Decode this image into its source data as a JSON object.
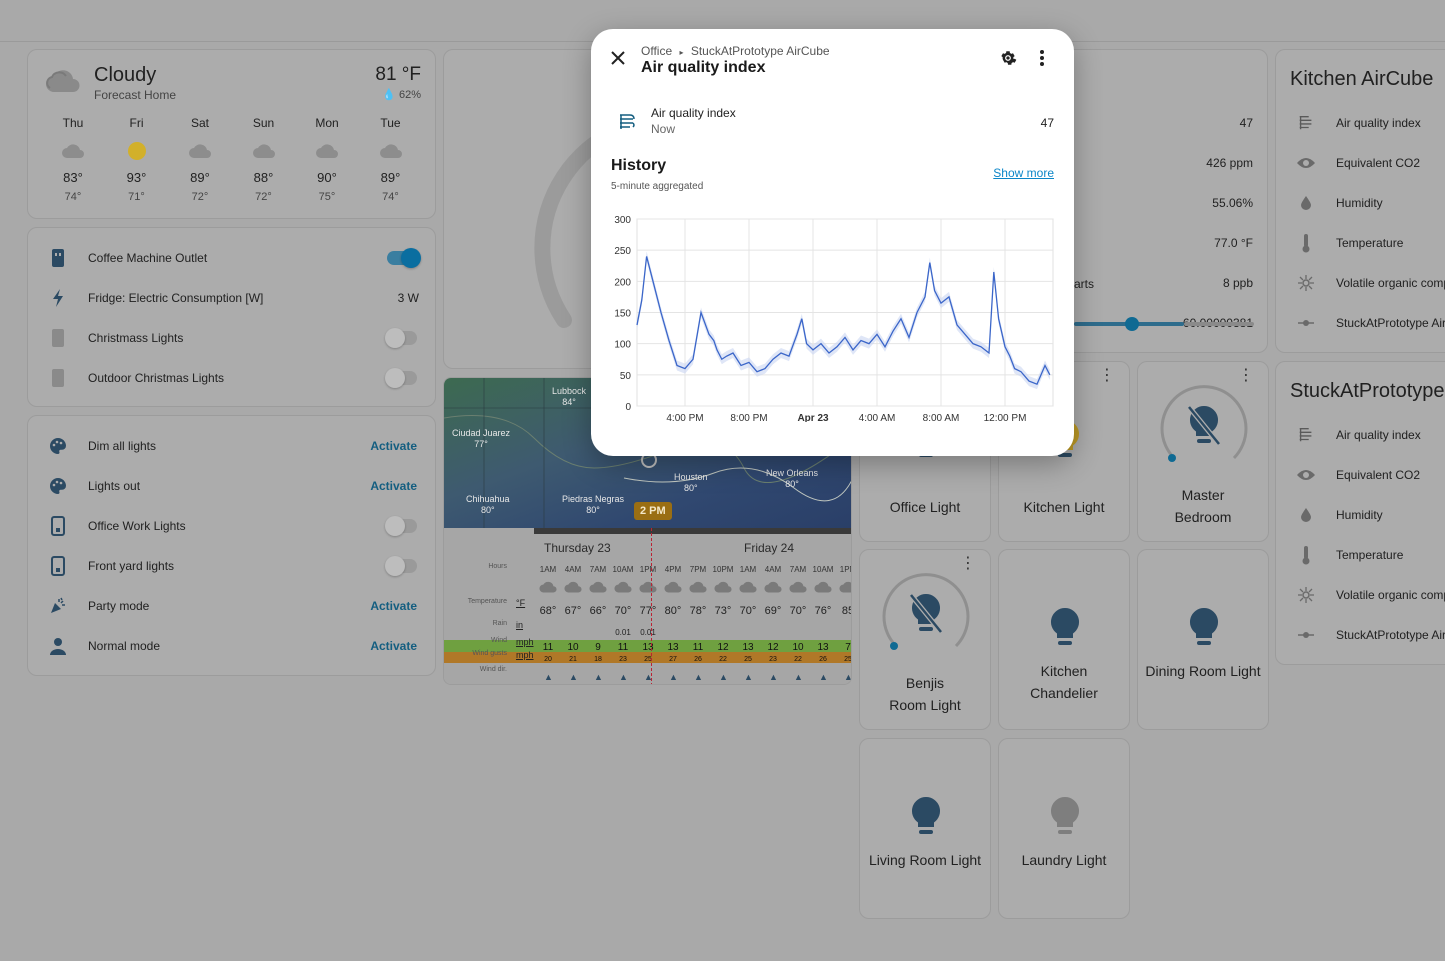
{
  "weather": {
    "condition": "Cloudy",
    "source": "Forecast Home",
    "temperature": "81 °F",
    "humidity": "62%",
    "forecast": [
      {
        "day": "Thu",
        "icon": "cloudy-icon",
        "hi": "83°",
        "lo": "74°"
      },
      {
        "day": "Fri",
        "icon": "sunny-icon",
        "hi": "93°",
        "lo": "71°"
      },
      {
        "day": "Sat",
        "icon": "cloudy-icon",
        "hi": "89°",
        "lo": "72°"
      },
      {
        "day": "Sun",
        "icon": "cloudy-icon",
        "hi": "88°",
        "lo": "72°"
      },
      {
        "day": "Mon",
        "icon": "cloudy-icon",
        "hi": "90°",
        "lo": "75°"
      },
      {
        "day": "Tue",
        "icon": "cloudy-icon",
        "hi": "89°",
        "lo": "74°"
      }
    ]
  },
  "switches": [
    {
      "icon": "outlet-icon",
      "label": "Coffee Machine Outlet",
      "state": "on"
    },
    {
      "icon": "flash-icon",
      "label": "Fridge: Electric Consumption [W]",
      "value": "3 W"
    },
    {
      "icon": "outlet-icon",
      "label": "Christmass Lights",
      "state": "off"
    },
    {
      "icon": "outlet-icon",
      "label": "Outdoor Christmas Lights",
      "state": "off"
    }
  ],
  "scenes": [
    {
      "icon": "palette-icon",
      "label": "Dim all lights",
      "action": "Activate"
    },
    {
      "icon": "palette-icon",
      "label": "Lights out",
      "action": "Activate"
    },
    {
      "icon": "switch-icon",
      "label": "Office Work Lights",
      "state": "off"
    },
    {
      "icon": "switch-icon",
      "label": "Front yard lights",
      "state": "off"
    },
    {
      "icon": "party-icon",
      "label": "Party mode",
      "action": "Activate"
    },
    {
      "icon": "person-icon",
      "label": "Normal mode",
      "action": "Activate"
    }
  ],
  "middle_sensors": {
    "values": [
      "47",
      "426 ppm",
      "55.06%",
      "77.0 °F",
      "8 ppb",
      "60.00000381"
    ],
    "partial_label": "arts"
  },
  "windy": {
    "cities": [
      {
        "name": "Lubbock",
        "temp": "84°"
      },
      {
        "name": "Ciudad Juarez",
        "temp": "77°"
      },
      {
        "name": "Chihuahua",
        "temp": "80°"
      },
      {
        "name": "Piedras Negras",
        "temp": "80°"
      },
      {
        "name": "Houston",
        "temp": "80°"
      },
      {
        "name": "New Orleans",
        "temp": "80°"
      }
    ],
    "time_marker": "2 PM",
    "day1": "Thursday 23",
    "day2": "Friday 24",
    "row_labels": [
      "Hours",
      "Temperature",
      "Rain",
      "Wind",
      "Wind gusts",
      "Wind dir."
    ],
    "units": [
      "°F",
      "in",
      "mph",
      "mph"
    ],
    "hours": [
      "1AM",
      "4AM",
      "7AM",
      "10AM",
      "1PM",
      "4PM",
      "7PM",
      "10PM",
      "1AM",
      "4AM",
      "7AM",
      "10AM",
      "1PM"
    ],
    "temps": [
      "68°",
      "67°",
      "66°",
      "70°",
      "77°",
      "80°",
      "78°",
      "73°",
      "70°",
      "69°",
      "70°",
      "76°",
      "85"
    ],
    "rain": [
      "",
      "",
      "",
      "0.01",
      "0.01",
      "",
      "",
      "",
      "",
      "",
      "",
      "",
      ""
    ],
    "wind": [
      "11",
      "10",
      "9",
      "11",
      "13",
      "13",
      "11",
      "12",
      "13",
      "12",
      "10",
      "13",
      "7"
    ],
    "gusts": [
      "20",
      "21",
      "18",
      "23",
      "25",
      "27",
      "26",
      "22",
      "25",
      "23",
      "22",
      "26",
      "25"
    ]
  },
  "tiles": [
    {
      "label": "Office Light",
      "icon": "lightbulb-icon"
    },
    {
      "label": "Kitchen Light",
      "icon": "lightbulb-icon"
    },
    {
      "label": "Master Bedroom",
      "icon": "lightbulb-off-icon"
    },
    {
      "label": "Benjis Room Light",
      "icon": "lightbulb-off-icon"
    },
    {
      "label": "Kitchen Chandelier",
      "icon": "lightbulb-icon"
    },
    {
      "label": "Dining Room Light",
      "icon": "lightbulb-icon"
    },
    {
      "label": "Living Room Light",
      "icon": "lightbulb-icon"
    },
    {
      "label": "Laundry Light",
      "icon": "lightbulb-icon"
    }
  ],
  "kitchen_aircube": {
    "title": "Kitchen AirCube",
    "rows": [
      "Air quality index",
      "Equivalent CO2",
      "Humidity",
      "Temperature",
      "Volatile organic comp",
      "StuckAtPrototype Air"
    ]
  },
  "stuck_card": {
    "title": "StuckAtPrototype",
    "rows": [
      "Air quality index",
      "Equivalent CO2",
      "Humidity",
      "Temperature",
      "Volatile organic comp",
      "StuckAtPrototype Air"
    ]
  },
  "dialog": {
    "breadcrumb_area": "Office",
    "breadcrumb_device": "StuckAtPrototype AirCube",
    "title": "Air quality index",
    "entity_name": "Air quality index",
    "entity_time": "Now",
    "entity_value": "47",
    "history_title": "History",
    "history_subtitle": "5-minute aggregated",
    "show_more": "Show more"
  },
  "chart_data": {
    "type": "line",
    "title": "",
    "xlabel": "",
    "ylabel": "",
    "ylim": [
      0,
      300
    ],
    "yticks": [
      "0",
      "50",
      "100",
      "150",
      "200",
      "250",
      "300"
    ],
    "xticks": [
      "4:00 PM",
      "8:00 PM",
      "Apr 23",
      "4:00 AM",
      "8:00 AM",
      "12:00 PM"
    ],
    "x_hours": [
      13.0,
      13.3,
      13.6,
      14.0,
      14.5,
      15.0,
      15.5,
      16.0,
      16.5,
      17.0,
      17.5,
      17.8,
      18.0,
      18.3,
      18.6,
      19.0,
      19.5,
      20.0,
      20.5,
      21.0,
      21.5,
      22.0,
      22.5,
      23.0,
      23.3,
      23.6,
      24.0,
      24.5,
      25.0,
      25.5,
      26.0,
      26.5,
      27.0,
      27.5,
      28.0,
      28.5,
      29.0,
      29.5,
      30.0,
      30.5,
      31.0,
      31.3,
      31.6,
      32.0,
      32.5,
      33.0,
      33.5,
      34.0,
      34.5,
      35.0,
      35.3,
      35.6,
      36.0,
      36.3,
      36.6,
      37.0,
      37.5,
      38.0,
      38.5,
      38.8
    ],
    "values": [
      130,
      170,
      240,
      200,
      150,
      105,
      65,
      60,
      75,
      150,
      115,
      105,
      90,
      75,
      80,
      85,
      65,
      70,
      55,
      60,
      75,
      85,
      80,
      115,
      140,
      100,
      90,
      100,
      85,
      95,
      110,
      90,
      105,
      100,
      115,
      95,
      120,
      140,
      110,
      150,
      175,
      230,
      185,
      165,
      175,
      130,
      115,
      100,
      95,
      85,
      215,
      140,
      95,
      80,
      60,
      55,
      40,
      35,
      65,
      50
    ]
  }
}
